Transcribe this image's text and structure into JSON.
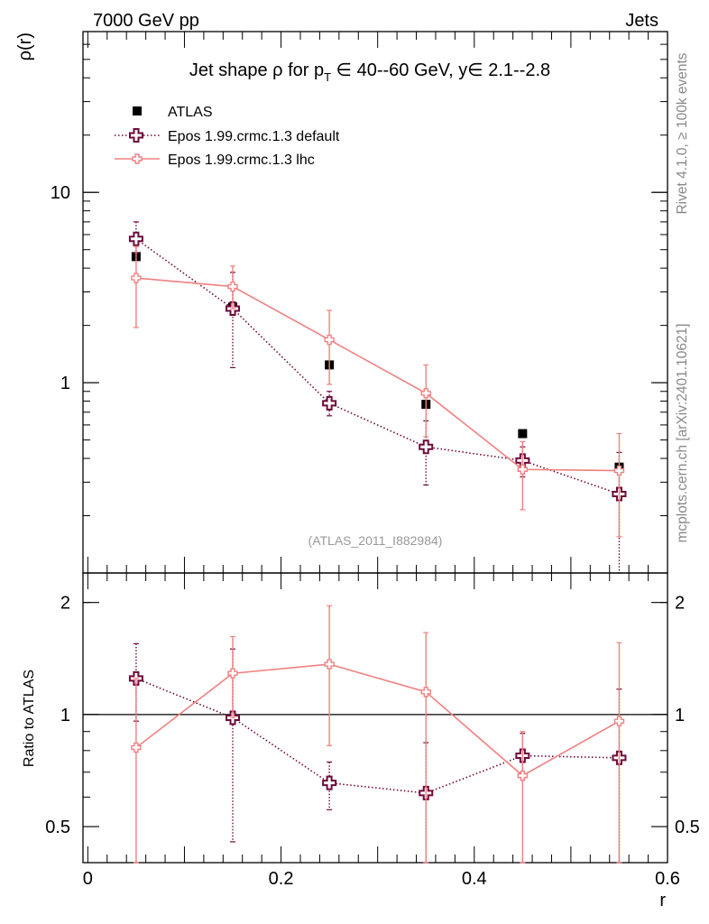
{
  "header": {
    "left": "7000 GeV pp",
    "right": "Jets"
  },
  "side_labels": {
    "upper": "Rivet 4.1.0, ≥ 100k events",
    "lower": "mcplots.cern.ch [arXiv:2401.10621]"
  },
  "watermark": "(ATLAS_2011_I882984)",
  "chart_data": [
    {
      "type": "scatter",
      "panel": "main",
      "title": {
        "pre": "Jet shape ρ for p",
        "sub": "T",
        "post": " ∈ 40--60 GeV, y∈ 2.1--2.8"
      },
      "ylabel": "ρ(r)",
      "xlabel": "r",
      "xlim": [
        -0.005,
        0.6
      ],
      "ylim": [
        0.1,
        70
      ],
      "yscale": "log",
      "yticks": [
        {
          "v": 1,
          "label": "1"
        },
        {
          "v": 10,
          "label": "10"
        }
      ],
      "xticks": [
        {
          "v": 0,
          "label": "0"
        },
        {
          "v": 0.2,
          "label": "0.2"
        },
        {
          "v": 0.4,
          "label": "0.4"
        },
        {
          "v": 0.6,
          "label": "0.6"
        }
      ],
      "legend": [
        {
          "label": "ATLAS",
          "series": 0
        },
        {
          "label": "Epos 1.99.crmc.1.3 default",
          "series": 1
        },
        {
          "label": "Epos 1.99.crmc.1.3 lhc",
          "series": 2
        }
      ],
      "series": [
        {
          "name": "ATLAS",
          "color": "#000000",
          "marker": "square",
          "x": [
            0.05,
            0.15,
            0.25,
            0.35,
            0.45,
            0.55
          ],
          "y": [
            4.6,
            2.5,
            1.24,
            0.77,
            0.54,
            0.36
          ],
          "err_lo": [
            0,
            0,
            0,
            0,
            0,
            0
          ],
          "err_hi": [
            0,
            0,
            0,
            0,
            0,
            0
          ]
        },
        {
          "name": "Epos 1.99.crmc.1.3 default",
          "color": "#6e0a3a",
          "marker": "cross",
          "line": "dotted",
          "x": [
            0.05,
            0.15,
            0.25,
            0.35,
            0.45,
            0.55
          ],
          "y": [
            5.7,
            2.45,
            0.78,
            0.46,
            0.39,
            0.26
          ],
          "err_lo": [
            4.8,
            1.2,
            0.67,
            0.29,
            0.32,
            0.095
          ],
          "err_hi": [
            7.0,
            3.8,
            0.9,
            0.63,
            0.46,
            0.43
          ]
        },
        {
          "name": "Epos 1.99.crmc.1.3 lhc",
          "color": "#f08080",
          "marker": "cross-small",
          "line": "solid",
          "x": [
            0.05,
            0.15,
            0.25,
            0.35,
            0.45,
            0.55
          ],
          "y": [
            3.55,
            3.2,
            1.68,
            0.88,
            0.35,
            0.345
          ],
          "err_lo": [
            1.95,
            2.45,
            0.98,
            0.52,
            0.215,
            0.155
          ],
          "err_hi": [
            5.2,
            4.1,
            2.4,
            1.24,
            0.49,
            0.54
          ]
        }
      ]
    },
    {
      "type": "scatter",
      "panel": "ratio",
      "ylabel": "Ratio to ATLAS",
      "xlabel": "r",
      "xlim": [
        -0.005,
        0.6
      ],
      "ylim": [
        0.4,
        2.4
      ],
      "yscale": "log",
      "yticks": [
        {
          "v": 0.5,
          "label": "0.5"
        },
        {
          "v": 1,
          "label": "1"
        },
        {
          "v": 2,
          "label": "2"
        }
      ],
      "xticks": [
        {
          "v": 0,
          "label": "0"
        },
        {
          "v": 0.2,
          "label": "0.2"
        },
        {
          "v": 0.4,
          "label": "0.4"
        },
        {
          "v": 0.6,
          "label": "0.6"
        }
      ],
      "reference_line": 1,
      "series": [
        {
          "name": "Epos 1.99.crmc.1.3 default",
          "color": "#6e0a3a",
          "marker": "cross",
          "line": "dotted",
          "x": [
            0.05,
            0.15,
            0.25,
            0.35,
            0.45,
            0.55
          ],
          "y": [
            1.25,
            0.98,
            0.655,
            0.615,
            0.775,
            0.765
          ],
          "err_lo": [
            0.96,
            0.455,
            0.555,
            0.4,
            0.68,
            0.355
          ],
          "err_hi": [
            1.55,
            1.5,
            0.745,
            0.84,
            0.89,
            1.17
          ]
        },
        {
          "name": "Epos 1.99.crmc.1.3 lhc",
          "color": "#f08080",
          "marker": "cross-small",
          "line": "solid",
          "x": [
            0.05,
            0.15,
            0.25,
            0.35,
            0.45,
            0.55
          ],
          "y": [
            0.815,
            1.29,
            1.365,
            1.15,
            0.685,
            0.96
          ],
          "err_lo": [
            0.375,
            0.98,
            0.825,
            0.4,
            0.38,
            0.38
          ],
          "err_hi": [
            1.25,
            1.62,
            1.96,
            1.66,
            0.9,
            1.56
          ]
        }
      ]
    }
  ]
}
